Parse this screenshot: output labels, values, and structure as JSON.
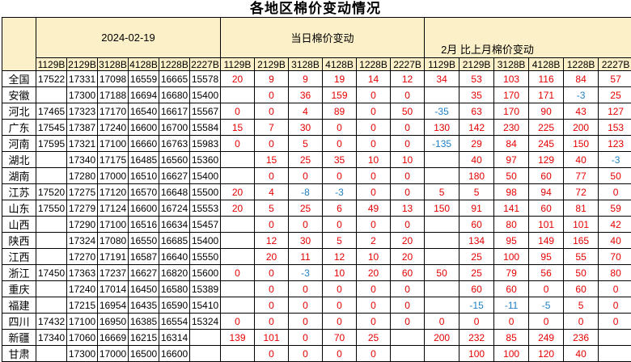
{
  "title": "各地区棉价变动情况",
  "colors": {
    "header_bg": "#FCF0C8",
    "positive_change": "#E60000",
    "negative_change": "#1E7FC6",
    "price_text": "#000000",
    "grid_border": "#000000"
  },
  "table": {
    "region_header": "地区",
    "groups": [
      {
        "id": "prices",
        "label": "2024-02-19"
      },
      {
        "id": "daily",
        "label": "当日棉价变动"
      },
      {
        "id": "monthly",
        "label": "2月 比上月棉价变动"
      }
    ],
    "grade_columns": [
      "1129B",
      "2129B",
      "3128B",
      "4128B",
      "1228B",
      "2227B"
    ],
    "rows": [
      {
        "region": "全国",
        "prices": [
          "17522",
          "17331",
          "17098",
          "16559",
          "16665",
          "15578"
        ],
        "daily": [
          "20",
          "9",
          "9",
          "19",
          "14",
          "12"
        ],
        "monthly": [
          "34",
          "53",
          "103",
          "116",
          "84",
          "57"
        ]
      },
      {
        "region": "安徽",
        "prices": [
          "",
          "17300",
          "17188",
          "16694",
          "16680",
          "15400"
        ],
        "daily": [
          "",
          "0",
          "36",
          "159",
          "0",
          "0"
        ],
        "monthly": [
          "",
          "35",
          "170",
          "171",
          "-3",
          "25"
        ]
      },
      {
        "region": "河北",
        "prices": [
          "17465",
          "17323",
          "17170",
          "16540",
          "16617",
          "15567"
        ],
        "daily": [
          "0",
          "0",
          "4",
          "89",
          "0",
          "50"
        ],
        "monthly": [
          "-35",
          "63",
          "170",
          "90",
          "43",
          "127"
        ]
      },
      {
        "region": "广东",
        "prices": [
          "17545",
          "17387",
          "17240",
          "16600",
          "16700",
          "15584"
        ],
        "daily": [
          "15",
          "7",
          "30",
          "0",
          "0",
          "0"
        ],
        "monthly": [
          "130",
          "142",
          "230",
          "225",
          "200",
          "153"
        ]
      },
      {
        "region": "河南",
        "prices": [
          "17595",
          "17321",
          "17100",
          "16660",
          "16763",
          "15983"
        ],
        "daily": [
          "0",
          "0",
          "5",
          "0",
          "0",
          "0"
        ],
        "monthly": [
          "-135",
          "29",
          "84",
          "245",
          "150",
          "123"
        ]
      },
      {
        "region": "湖北",
        "prices": [
          "",
          "17340",
          "17175",
          "16485",
          "16560",
          "15360"
        ],
        "daily": [
          "",
          "15",
          "25",
          "35",
          "10",
          "10"
        ],
        "monthly": [
          "",
          "40",
          "97",
          "129",
          "40",
          "-3"
        ]
      },
      {
        "region": "湖南",
        "prices": [
          "",
          "17280",
          "17000",
          "16510",
          "16627",
          "15400"
        ],
        "daily": [
          "",
          "0",
          "0",
          "0",
          "0",
          "0"
        ],
        "monthly": [
          "",
          "180",
          "50",
          "60",
          "77",
          "50"
        ]
      },
      {
        "region": "江苏",
        "prices": [
          "17520",
          "17275",
          "17120",
          "16570",
          "16648",
          "15500"
        ],
        "daily": [
          "20",
          "4",
          "-8",
          "-3",
          "0",
          "0"
        ],
        "monthly": [
          "5",
          "5",
          "98",
          "94",
          "72",
          "0"
        ]
      },
      {
        "region": "山东",
        "prices": [
          "17550",
          "17279",
          "17124",
          "16600",
          "16724",
          "15553"
        ],
        "daily": [
          "20",
          "5",
          "25",
          "6",
          "49",
          "13"
        ],
        "monthly": [
          "150",
          "91",
          "141",
          "60",
          "81",
          "59"
        ]
      },
      {
        "region": "山西",
        "prices": [
          "",
          "17290",
          "17100",
          "16516",
          "16634",
          "15457"
        ],
        "daily": [
          "",
          "0",
          "0",
          "0",
          "0",
          "0"
        ],
        "monthly": [
          "",
          "60",
          "80",
          "101",
          "101",
          "42"
        ]
      },
      {
        "region": "陕西",
        "prices": [
          "",
          "17324",
          "17080",
          "16550",
          "16685",
          "15400"
        ],
        "daily": [
          "",
          "12",
          "30",
          "5",
          "2",
          "20"
        ],
        "monthly": [
          "",
          "134",
          "95",
          "149",
          "165",
          "40"
        ]
      },
      {
        "region": "江西",
        "prices": [
          "",
          "17270",
          "17191",
          "16587",
          "16640",
          "15550"
        ],
        "daily": [
          "",
          "20",
          "11",
          "12",
          "10",
          "20"
        ],
        "monthly": [
          "",
          "25",
          "100",
          "95",
          "55",
          "70"
        ]
      },
      {
        "region": "浙江",
        "prices": [
          "17450",
          "17363",
          "17237",
          "16627",
          "16820",
          "15600"
        ],
        "daily": [
          "0",
          "0",
          "-3",
          "10",
          "20",
          "60"
        ],
        "monthly": [
          "50",
          "25",
          "79",
          "56",
          "50",
          "80"
        ]
      },
      {
        "region": "重庆",
        "prices": [
          "",
          "17240",
          "17014",
          "16450",
          "16580",
          "15389"
        ],
        "daily": [
          "",
          "0",
          "0",
          "0",
          "0",
          "0"
        ],
        "monthly": [
          "",
          "60",
          "60",
          "0",
          "60",
          "0"
        ]
      },
      {
        "region": "福建",
        "prices": [
          "",
          "17215",
          "16954",
          "16435",
          "16590",
          "15410"
        ],
        "daily": [
          "",
          "0",
          "0",
          "0",
          "0",
          "0"
        ],
        "monthly": [
          "",
          "-15",
          "-11",
          "-5",
          "5",
          "0"
        ]
      },
      {
        "region": "四川",
        "prices": [
          "17432",
          "17100",
          "16950",
          "16385",
          "16554",
          "15324"
        ],
        "daily": [
          "0",
          "0",
          "0",
          "0",
          "0",
          "0"
        ],
        "monthly": [
          "0",
          "0",
          "0",
          "0",
          "0",
          "0"
        ]
      },
      {
        "region": "新疆",
        "prices": [
          "17340",
          "17060",
          "16669",
          "16215",
          "16314",
          ""
        ],
        "daily": [
          "139",
          "101",
          "0",
          "70",
          "25",
          ""
        ],
        "monthly": [
          "200",
          "232",
          "85",
          "249",
          "236",
          ""
        ]
      },
      {
        "region": "甘肃",
        "prices": [
          "",
          "17300",
          "17000",
          "16500",
          "16600",
          ""
        ],
        "daily": [
          "",
          "0",
          "0",
          "0",
          "0",
          ""
        ],
        "monthly": [
          "",
          "100",
          "100",
          "120",
          "40",
          ""
        ]
      }
    ]
  }
}
